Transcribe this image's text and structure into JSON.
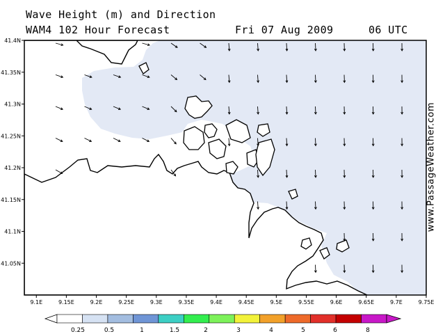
{
  "title": {
    "line1": "Wave Height (m) and Direction",
    "model": "WAM4 102 Hour Forecast",
    "date": "Fri 07 Aug 2009",
    "time": "06 UTC"
  },
  "watermark": "www.PassageWeather.com",
  "axes": {
    "lon_labels": [
      "9.1E",
      "9.15E",
      "9.2E",
      "9.25E",
      "9.3E",
      "9.35E",
      "9.4E",
      "9.45E",
      "9.5E",
      "9.55E",
      "9.6E",
      "9.65E",
      "9.7E",
      "9.75E"
    ],
    "lat_labels": [
      "41.4N",
      "41.35N",
      "41.3N",
      "41.25N",
      "41.2N",
      "41.15N",
      "41.1N",
      "41.05N"
    ],
    "lon_range": [
      9.08,
      9.75
    ],
    "lat_range": [
      41.0,
      41.4
    ]
  },
  "colorscale": {
    "labels": [
      "0.25",
      "0.5",
      "1",
      "1.5",
      "2",
      "3",
      "4",
      "5",
      "6",
      "8"
    ],
    "colors": [
      "#ffffff",
      "#d6e2f3",
      "#a3bde0",
      "#6f95d6",
      "#3ccfc4",
      "#33ee4f",
      "#7df25a",
      "#f2f23a",
      "#f2a12a",
      "#ee6a2a",
      "#e2302a",
      "#c40000",
      "#c818c8"
    ]
  },
  "map": {
    "land_color": "#ffffff",
    "sea_color": "#e3e9f5",
    "coast_color": "#000000",
    "wave_height_shown": "0.25-0.5",
    "arrow_direction_west": "toward east-southeast",
    "arrow_direction_east": "toward south"
  }
}
